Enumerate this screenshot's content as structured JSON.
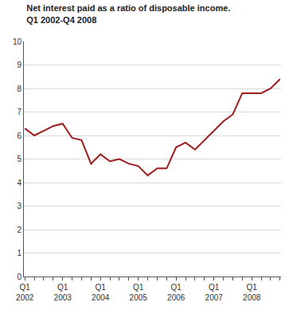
{
  "chart_data": {
    "type": "line",
    "title": "Net interest paid as a ratio of disposable income.\nQ1 2002-Q4 2008",
    "categories": [
      "Q1\n2002",
      null,
      null,
      null,
      "Q1\n2003",
      null,
      null,
      null,
      "Q1\n2004",
      null,
      null,
      null,
      "Q1\n2005",
      null,
      null,
      null,
      "Q1\n2006",
      null,
      null,
      null,
      "Q1\n2007",
      null,
      null,
      null,
      "Q1\n2008",
      null,
      null,
      null
    ],
    "values": [
      6.3,
      6.0,
      6.2,
      6.4,
      6.5,
      5.9,
      5.8,
      4.8,
      5.2,
      4.9,
      5.0,
      4.8,
      4.7,
      4.3,
      4.6,
      4.6,
      5.5,
      5.7,
      5.4,
      5.8,
      6.2,
      6.6,
      6.9,
      7.8,
      7.8,
      7.8,
      8.0,
      8.4
    ],
    "color": "#9e1b1e",
    "ylim": [
      0,
      10
    ],
    "yticks": [
      0,
      1,
      2,
      3,
      4,
      5,
      6,
      7,
      8,
      9,
      10
    ],
    "grid": true
  }
}
